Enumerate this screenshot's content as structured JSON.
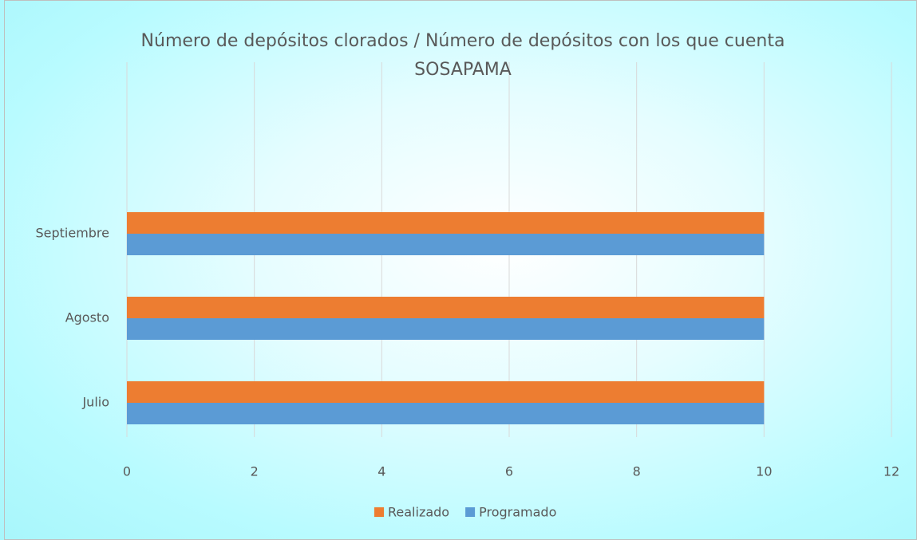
{
  "chart_data": {
    "type": "hbar",
    "title": "Número de depósitos clorados / Número de depósitos con los que cuenta SOSAPAMA",
    "categories": [
      "Julio",
      "Agosto",
      "Septiembre"
    ],
    "series": [
      {
        "name": "Realizado",
        "color": "#ED7D31",
        "values": [
          10,
          10,
          10
        ]
      },
      {
        "name": "Programado",
        "color": "#5B9BD5",
        "values": [
          10,
          10,
          10
        ]
      }
    ],
    "xlim": [
      0,
      12
    ],
    "xticks": [
      0,
      2,
      4,
      6,
      8,
      10,
      12
    ],
    "grid": true,
    "legend": "bottom"
  }
}
